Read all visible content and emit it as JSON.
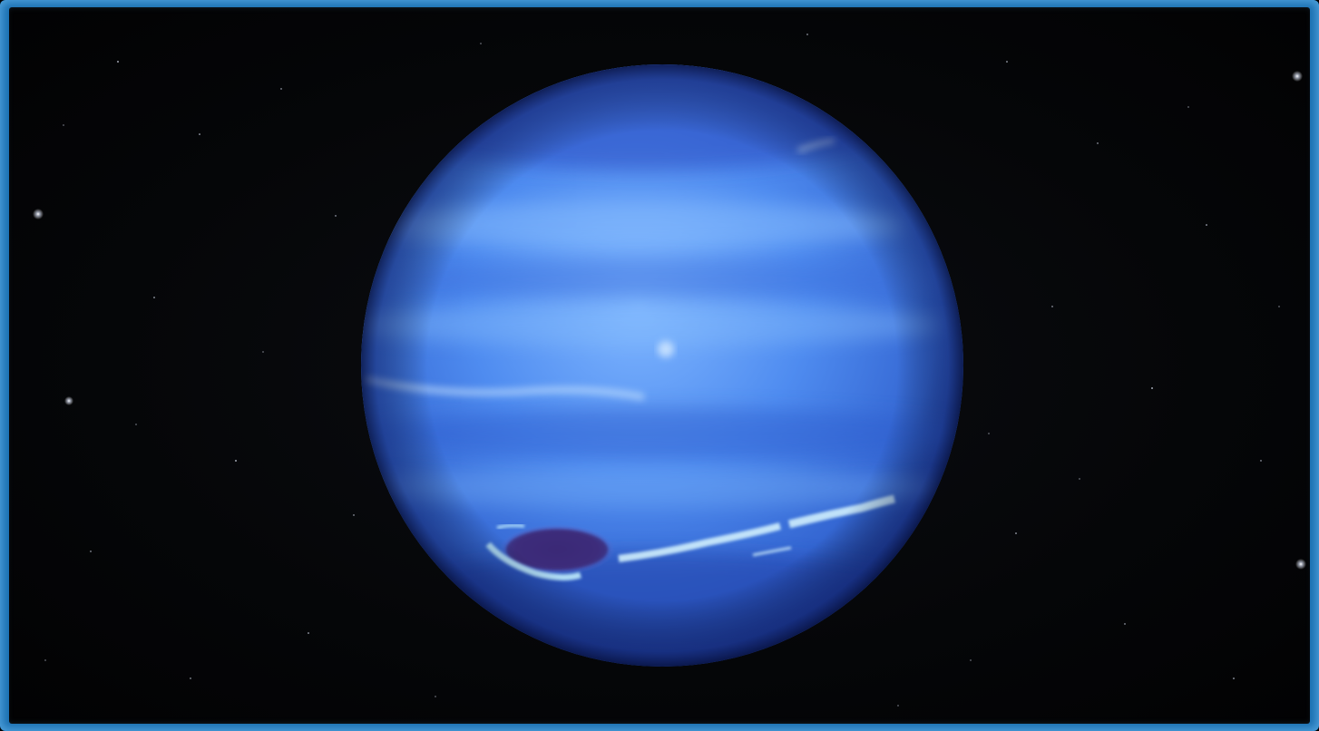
{
  "scene": {
    "subject": "neptune-planet",
    "colors": {
      "space": "#050608",
      "frame": "#1a6fb0",
      "planet_light": "#6fa8f5",
      "planet_mid": "#3f7ae3",
      "planet_dark": "#1f3f9e",
      "storm_dark": "#3a2a78",
      "cloud_white": "#d8f2ff"
    }
  }
}
